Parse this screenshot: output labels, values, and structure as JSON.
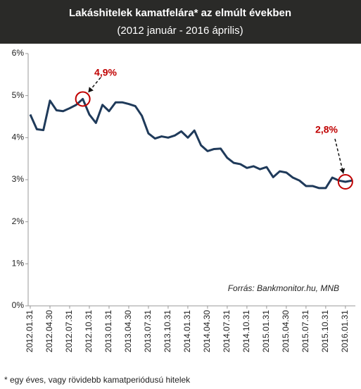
{
  "chart_data": {
    "type": "line",
    "title": "Lakáshitelek kamatfelára* az elmúlt években",
    "subtitle": "(2012 január - 2016 április)",
    "categories": [
      "2012.01.31",
      null,
      null,
      "2012.04.30",
      null,
      null,
      "2012.07.31",
      null,
      null,
      "2012.10.31",
      null,
      null,
      "2013.01.31",
      null,
      null,
      "2013.04.30",
      null,
      null,
      "2013.07.31",
      null,
      null,
      "2013.10.31",
      null,
      null,
      "2014.01.31",
      null,
      null,
      "2014.04.30",
      null,
      null,
      "2014.07.31",
      null,
      null,
      "2014.10.31",
      null,
      null,
      "2015.01.31",
      null,
      null,
      "2015.04.30",
      null,
      null,
      "2015.07.31",
      null,
      null,
      "2015.10.31",
      null,
      null,
      "2016.01.31",
      null
    ],
    "series": [
      {
        "name": "Kamatfelár",
        "color": "#1f3a5a",
        "values": [
          4.55,
          4.2,
          4.18,
          4.88,
          4.65,
          4.63,
          4.7,
          4.78,
          4.92,
          4.55,
          4.35,
          4.78,
          4.63,
          4.84,
          4.84,
          4.8,
          4.75,
          4.52,
          4.1,
          3.98,
          4.03,
          4.0,
          4.05,
          4.15,
          4.0,
          4.17,
          3.82,
          3.68,
          3.73,
          3.74,
          3.52,
          3.4,
          3.37,
          3.28,
          3.32,
          3.25,
          3.3,
          3.06,
          3.2,
          3.17,
          3.05,
          2.98,
          2.85,
          2.85,
          2.8,
          2.8,
          3.05,
          2.98,
          2.95,
          2.98
        ]
      }
    ],
    "ylim": [
      0,
      6
    ],
    "yticks": [
      {
        "value": 0,
        "label": "0%"
      },
      {
        "value": 1,
        "label": "1%"
      },
      {
        "value": 2,
        "label": "2%"
      },
      {
        "value": 3,
        "label": "3%"
      },
      {
        "value": 4,
        "label": "4%"
      },
      {
        "value": 5,
        "label": "5%"
      },
      {
        "value": 6,
        "label": "6%"
      }
    ],
    "annotations": [
      "4,9%",
      "2,8%"
    ],
    "annotation_color": "#c00000",
    "source": "Forrás: Bankmonitor.hu, MNB",
    "footnote": "* egy éves, vagy rövidebb kamatperiódusú hitelek"
  }
}
